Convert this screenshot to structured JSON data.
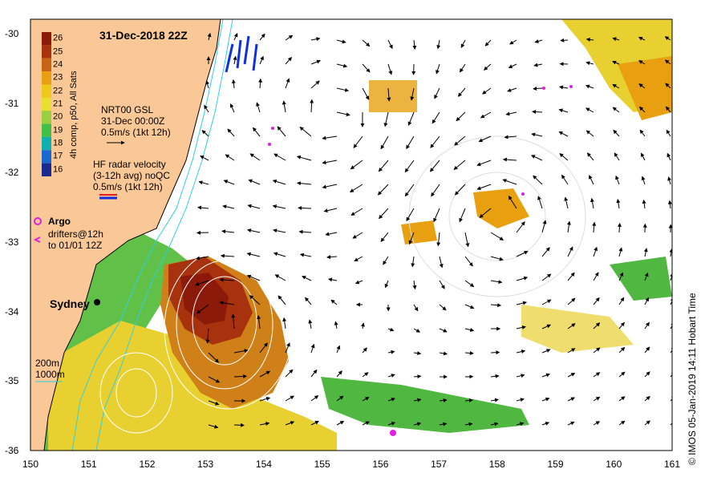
{
  "title": "31-Dec-2018 22Z",
  "credit": "© IMOS 05-Jan-2019 14:11 Hobart Time",
  "colorbar": {
    "title": "4h comp, p50, All Sats",
    "ticks": [
      "26",
      "25",
      "24",
      "23",
      "22",
      "21",
      "20",
      "19",
      "18",
      "17",
      "16"
    ],
    "colors": [
      "#8b1a0a",
      "#a8320d",
      "#c86414",
      "#e8a010",
      "#f0c818",
      "#e8e030",
      "#9ad040",
      "#40c048",
      "#10b0b0",
      "#1868d0",
      "#1a2a90"
    ]
  },
  "legend": {
    "gsl_title": "NRT00 GSL",
    "gsl_time": "31-Dec 00:00Z",
    "gsl_scale": "0.5m/s (1kt 12h)",
    "hf_title": "HF radar velocity",
    "hf_avg": "(3-12h avg) noQC",
    "hf_scale": "0.5m/s (1kt 12h)",
    "argo": "Argo",
    "drifters": "drifters@12h",
    "drifters_until": "to 01/01 12Z",
    "iso_200": "200m",
    "iso_1000": "1000m"
  },
  "city": "Sydney",
  "colors": {
    "land": "#f9c896",
    "isobath": "#30d0e0",
    "argo": "#e020e0",
    "hf": "#1030e0",
    "ocean": "#ffffff"
  },
  "axes": {
    "x_ticks": [
      "150",
      "151",
      "152",
      "153",
      "154",
      "155",
      "156",
      "157",
      "158",
      "159",
      "160",
      "161"
    ],
    "y_ticks": [
      "-30",
      "-31",
      "-32",
      "-33",
      "-34",
      "-35",
      "-36"
    ],
    "lon_range": [
      150,
      161
    ],
    "lat_range": [
      -36,
      -30
    ]
  }
}
